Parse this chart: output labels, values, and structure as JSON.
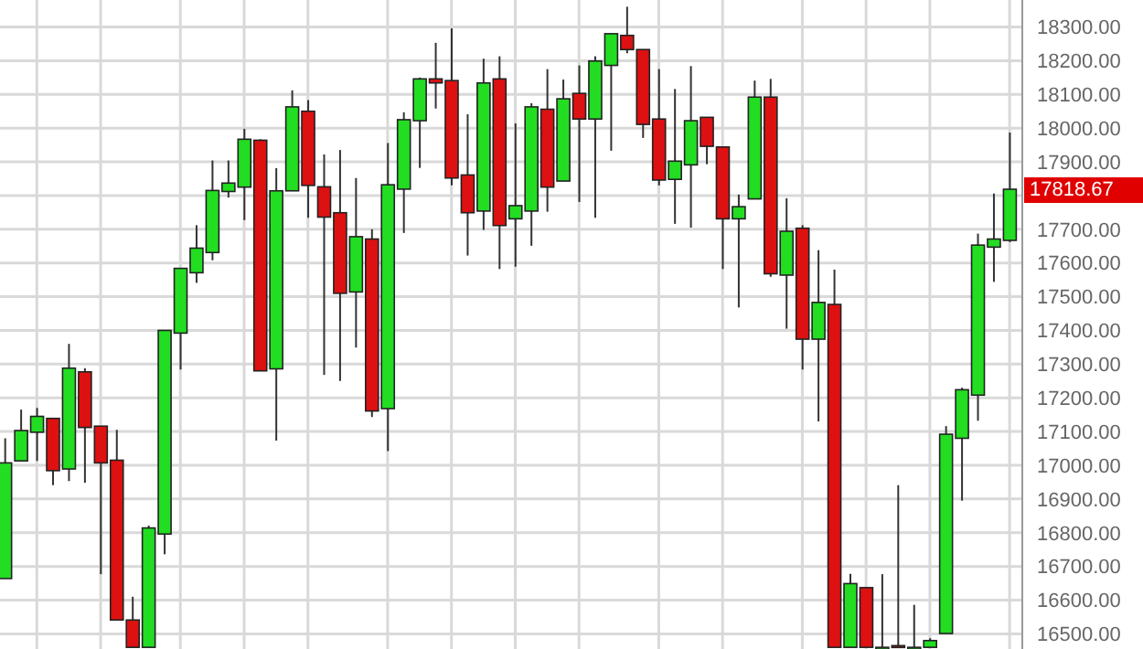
{
  "chart_data": {
    "type": "candlestick",
    "categories": [
      null,
      null,
      null,
      null,
      null,
      null,
      null,
      null,
      null,
      null,
      null,
      null,
      null,
      null,
      null,
      null,
      null,
      null,
      null,
      null,
      null,
      null,
      null,
      null,
      null,
      null,
      null,
      null,
      null,
      null,
      null,
      null,
      null,
      null,
      null,
      null,
      null,
      null,
      null,
      null,
      null,
      null,
      null,
      null,
      null,
      null,
      null,
      null,
      null,
      null,
      null,
      null,
      null,
      null,
      null,
      null,
      null,
      null,
      null,
      null,
      null,
      null,
      null,
      null
    ],
    "ohlc": [
      [
        16664,
        17080,
        16664,
        17007
      ],
      [
        17013,
        17165,
        17013,
        17103
      ],
      [
        17098,
        17170,
        17013,
        17145
      ],
      [
        17139,
        17139,
        16941,
        16984
      ],
      [
        16989,
        17360,
        16953,
        17288
      ],
      [
        17277,
        17288,
        16948,
        17112
      ],
      [
        17116,
        17116,
        16677,
        17007
      ],
      [
        17015,
        17105,
        16541,
        16541
      ],
      [
        16541,
        16610,
        16460,
        16460
      ],
      [
        16460,
        16821,
        16460,
        16814
      ],
      [
        16796,
        17400,
        16736,
        17400
      ],
      [
        17392,
        17584,
        17284,
        17584
      ],
      [
        17571,
        17712,
        17541,
        17644
      ],
      [
        17631,
        17904,
        17608,
        17815
      ],
      [
        17812,
        17904,
        17794,
        17837
      ],
      [
        17825,
        17998,
        17727,
        17967
      ],
      [
        17964,
        17967,
        17280,
        17280
      ],
      [
        17286,
        17881,
        17073,
        17814
      ],
      [
        17814,
        18112,
        17814,
        18063
      ],
      [
        18050,
        18083,
        17734,
        17830
      ],
      [
        17826,
        17922,
        17268,
        17736
      ],
      [
        17749,
        17935,
        17250,
        17510
      ],
      [
        17514,
        17852,
        17349,
        17678
      ],
      [
        17671,
        17700,
        17143,
        17161
      ],
      [
        17168,
        17956,
        17042,
        17832
      ],
      [
        17819,
        18047,
        17689,
        18025
      ],
      [
        18022,
        18150,
        17882,
        18146
      ],
      [
        18146,
        18253,
        18058,
        18134
      ],
      [
        18141,
        18296,
        17830,
        17852
      ],
      [
        17861,
        18041,
        17622,
        17749
      ],
      [
        17754,
        18206,
        17698,
        18134
      ],
      [
        18146,
        18213,
        17582,
        17711
      ],
      [
        17731,
        18014,
        17589,
        17770
      ],
      [
        17754,
        18074,
        17651,
        18063
      ],
      [
        18056,
        18175,
        17752,
        17825
      ],
      [
        17843,
        18144,
        17843,
        18087
      ],
      [
        18103,
        18186,
        17781,
        18027
      ],
      [
        18027,
        18213,
        17734,
        18199
      ],
      [
        18186,
        18280,
        17933,
        18280
      ],
      [
        18275,
        18360,
        18222,
        18233
      ],
      [
        18233,
        18233,
        17971,
        18011
      ],
      [
        18027,
        18175,
        17830,
        17846
      ],
      [
        17848,
        18116,
        17716,
        17902
      ],
      [
        17891,
        18184,
        17705,
        18022
      ],
      [
        18032,
        18032,
        17893,
        17946
      ],
      [
        17944,
        17944,
        17582,
        17731
      ],
      [
        17731,
        17803,
        17468,
        17767
      ],
      [
        17790,
        18141,
        17790,
        18092
      ],
      [
        18092,
        18146,
        17559,
        17568
      ],
      [
        17564,
        17792,
        17405,
        17694
      ],
      [
        17703,
        17712,
        17284,
        17374
      ],
      [
        17374,
        17638,
        17130,
        17483
      ],
      [
        17477,
        17580,
        16460,
        16460
      ],
      [
        16460,
        16678,
        16460,
        16649
      ],
      [
        16637,
        16637,
        16460,
        16460
      ],
      [
        16460,
        16677,
        16460,
        16460
      ],
      [
        16465,
        16941,
        16460,
        16460
      ],
      [
        16460,
        16586,
        16460,
        16460
      ],
      [
        16460,
        16487,
        16460,
        16480
      ],
      [
        16501,
        17116,
        16501,
        17092
      ],
      [
        17080,
        17230,
        16895,
        17224
      ],
      [
        17208,
        17687,
        17132,
        17653
      ],
      [
        17647,
        17806,
        17544,
        17671
      ],
      [
        17667,
        17987,
        17662,
        17818.67
      ]
    ],
    "colors": [
      "#22dd22",
      "#22dd22",
      "#22dd22",
      "#dd1111",
      "#22dd22",
      "#dd1111",
      "#dd1111",
      "#dd1111",
      "#dd1111",
      "#22dd22",
      "#22dd22",
      "#22dd22",
      "#22dd22",
      "#22dd22",
      "#22dd22",
      "#22dd22",
      "#dd1111",
      "#22dd22",
      "#22dd22",
      "#dd1111",
      "#dd1111",
      "#dd1111",
      "#22dd22",
      "#dd1111",
      "#22dd22",
      "#22dd22",
      "#22dd22",
      "#dd1111",
      "#dd1111",
      "#dd1111",
      "#22dd22",
      "#dd1111",
      "#22dd22",
      "#22dd22",
      "#dd1111",
      "#22dd22",
      "#dd1111",
      "#22dd22",
      "#22dd22",
      "#dd1111",
      "#dd1111",
      "#dd1111",
      "#22dd22",
      "#22dd22",
      "#dd1111",
      "#dd1111",
      "#22dd22",
      "#22dd22",
      "#dd1111",
      "#22dd22",
      "#dd1111",
      "#22dd22",
      "#dd1111",
      "#22dd22",
      "#dd1111",
      "#22dd22",
      "#dd1111",
      "#22dd22",
      "#22dd22",
      "#22dd22",
      "#22dd22",
      "#22dd22",
      "#22dd22",
      "#22dd22"
    ],
    "ylim": [
      16455,
      18380
    ],
    "yticks": [
      {
        "value": 16500,
        "label": "16500.00"
      },
      {
        "value": 16600,
        "label": "16600.00"
      },
      {
        "value": 16700,
        "label": "16700.00"
      },
      {
        "value": 16800,
        "label": "16800.00"
      },
      {
        "value": 16900,
        "label": "16900.00"
      },
      {
        "value": 17000,
        "label": "17000.00"
      },
      {
        "value": 17100,
        "label": "17100.00"
      },
      {
        "value": 17200,
        "label": "17200.00"
      },
      {
        "value": 17300,
        "label": "17300.00"
      },
      {
        "value": 17400,
        "label": "17400.00"
      },
      {
        "value": 17500,
        "label": "17500.00"
      },
      {
        "value": 17600,
        "label": "17600.00"
      },
      {
        "value": 17700,
        "label": "17700.00"
      },
      {
        "value": 17800,
        "label": null
      },
      {
        "value": 17900,
        "label": "17900.00"
      },
      {
        "value": 18000,
        "label": "18000.00"
      },
      {
        "value": 18100,
        "label": "18100.00"
      },
      {
        "value": 18200,
        "label": "18200.00"
      },
      {
        "value": 18300,
        "label": "18300.00"
      }
    ],
    "grid": true,
    "annotations": [
      "17818.67"
    ]
  }
}
